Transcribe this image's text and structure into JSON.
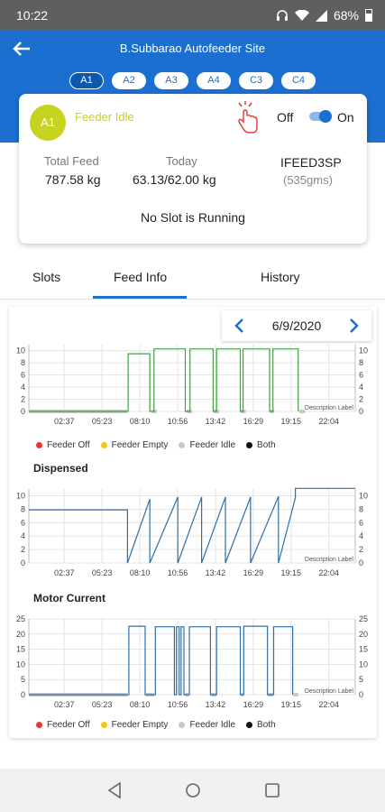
{
  "status_bar": {
    "time": "10:22",
    "battery": "68%"
  },
  "header": {
    "title": "B.Subbarao Autofeeder Site",
    "slots": [
      "A1",
      "A2",
      "A3",
      "A4",
      "C3",
      "C4"
    ],
    "active_slot": "A1"
  },
  "card": {
    "avatar": "A1",
    "status": "Feeder Idle",
    "off_label": "Off",
    "on_label": "On",
    "toggle_on": true,
    "total_feed_label": "Total Feed",
    "total_feed_value": "787.58 kg",
    "today_label": "Today",
    "today_value": "63.13/62.00 kg",
    "device_name": "IFEED3SP",
    "device_weight": "(535gms)",
    "slot_message": "No Slot is Running"
  },
  "tabs": [
    "Slots",
    "Feed Info",
    "History"
  ],
  "active_tab": "Feed Info",
  "date": "6/9/2020",
  "colors": {
    "primary": "#1a6fd0",
    "avatar": "#c6d31f",
    "status_green": "#43a047",
    "series_blue": "#2f6fa8",
    "idle_gray": "#c8c8c8"
  },
  "legend": [
    {
      "label": "Feeder Off",
      "color": "#e53935"
    },
    {
      "label": "Feeder Empty",
      "color": "#f5c518"
    },
    {
      "label": "Feeder Idle",
      "color": "#c8c8c8"
    },
    {
      "label": "Both",
      "color": "#111111"
    }
  ],
  "chart_data": [
    {
      "type": "line",
      "title": "",
      "description_label": "Description Label",
      "x_ticks": [
        "02:37",
        "05:23",
        "08:10",
        "10:56",
        "13:42",
        "16:29",
        "19:15",
        "22:04"
      ],
      "y_ticks": [
        0,
        2,
        4,
        6,
        8,
        10
      ],
      "ylim": [
        0,
        11
      ],
      "x_range": [
        0.0,
        24.0
      ],
      "series": [
        {
          "color": "#43a047",
          "points": [
            [
              0,
              0
            ],
            [
              7.3,
              0
            ],
            [
              7.3,
              9.5
            ],
            [
              8.9,
              9.5
            ],
            [
              8.9,
              0
            ],
            [
              9.2,
              0
            ],
            [
              9.2,
              10.3
            ],
            [
              11.5,
              10.3
            ],
            [
              11.5,
              0
            ],
            [
              11.85,
              0
            ],
            [
              11.85,
              10.3
            ],
            [
              13.55,
              10.3
            ],
            [
              13.55,
              0
            ],
            [
              13.8,
              0
            ],
            [
              13.8,
              10.3
            ],
            [
              15.55,
              10.3
            ],
            [
              15.55,
              0
            ],
            [
              15.75,
              0
            ],
            [
              15.75,
              10.3
            ],
            [
              17.7,
              10.3
            ],
            [
              17.7,
              0
            ],
            [
              17.95,
              0
            ],
            [
              17.95,
              10.3
            ],
            [
              19.8,
              10.3
            ],
            [
              19.8,
              0
            ]
          ]
        }
      ],
      "idle_bars": [
        [
          0,
          7.2
        ],
        [
          9.05,
          9.4
        ],
        [
          11.6,
          12.0
        ],
        [
          13.6,
          14.0
        ],
        [
          15.6,
          15.95
        ],
        [
          17.75,
          18.05
        ],
        [
          19.9,
          20.3
        ]
      ]
    },
    {
      "type": "line",
      "title": "Dispensed",
      "description_label": "Description Label",
      "x_ticks": [
        "02:37",
        "05:23",
        "08:10",
        "10:56",
        "13:42",
        "16:29",
        "19:15",
        "22:04"
      ],
      "y_ticks": [
        0,
        2,
        4,
        6,
        8,
        10
      ],
      "ylim": [
        0,
        11
      ],
      "x_range": [
        0.0,
        24.0
      ],
      "series": [
        {
          "color": "#2f6fa8",
          "points": [
            [
              0,
              7.9
            ],
            [
              7.25,
              7.9
            ],
            [
              7.25,
              0
            ],
            [
              8.9,
              9.5
            ],
            [
              8.9,
              0
            ],
            [
              10.95,
              9.8
            ],
            [
              10.95,
              0
            ],
            [
              12.7,
              9.8
            ],
            [
              12.7,
              0
            ],
            [
              14.45,
              9.8
            ],
            [
              14.45,
              0
            ],
            [
              16.3,
              9.8
            ],
            [
              16.3,
              0
            ],
            [
              18.35,
              9.9
            ],
            [
              18.35,
              0
            ],
            [
              19.6,
              9.7
            ],
            [
              19.6,
              11.1
            ],
            [
              24.0,
              11.1
            ]
          ]
        }
      ],
      "idle_bars": []
    },
    {
      "type": "line",
      "title": "Motor Current",
      "description_label": "Description Label",
      "x_ticks": [
        "02:37",
        "05:23",
        "08:10",
        "10:56",
        "13:42",
        "16:29",
        "19:15",
        "22:04"
      ],
      "y_ticks": [
        0,
        5,
        10,
        15,
        20,
        25
      ],
      "ylim": [
        0,
        25
      ],
      "x_range": [
        0.0,
        24.0
      ],
      "series": [
        {
          "color": "#2f6fa8",
          "points": [
            [
              0,
              0
            ],
            [
              7.35,
              0
            ],
            [
              7.35,
              22.6
            ],
            [
              8.55,
              22.6
            ],
            [
              8.55,
              0
            ],
            [
              9.3,
              0
            ],
            [
              9.3,
              22.4
            ],
            [
              10.7,
              22.4
            ],
            [
              10.7,
              0
            ],
            [
              10.85,
              0
            ],
            [
              10.85,
              22.4
            ],
            [
              11.05,
              22.4
            ],
            [
              11.05,
              0
            ],
            [
              11.2,
              0
            ],
            [
              11.2,
              22.4
            ],
            [
              11.4,
              22.4
            ],
            [
              11.4,
              0
            ],
            [
              11.8,
              0
            ],
            [
              11.8,
              22.4
            ],
            [
              13.35,
              22.4
            ],
            [
              13.35,
              0
            ],
            [
              13.8,
              0
            ],
            [
              13.8,
              22.4
            ],
            [
              15.55,
              22.4
            ],
            [
              15.55,
              0
            ],
            [
              15.8,
              0
            ],
            [
              15.8,
              22.6
            ],
            [
              17.55,
              22.6
            ],
            [
              17.55,
              0
            ],
            [
              18.0,
              0
            ],
            [
              18.0,
              22.4
            ],
            [
              19.4,
              22.4
            ],
            [
              19.4,
              0
            ]
          ]
        }
      ],
      "idle_bars": [
        [
          0,
          7.25
        ],
        [
          8.6,
          9.2
        ],
        [
          11.5,
          11.75
        ],
        [
          13.4,
          13.75
        ],
        [
          15.6,
          15.75
        ],
        [
          17.6,
          17.95
        ],
        [
          19.45,
          19.8
        ]
      ]
    }
  ]
}
